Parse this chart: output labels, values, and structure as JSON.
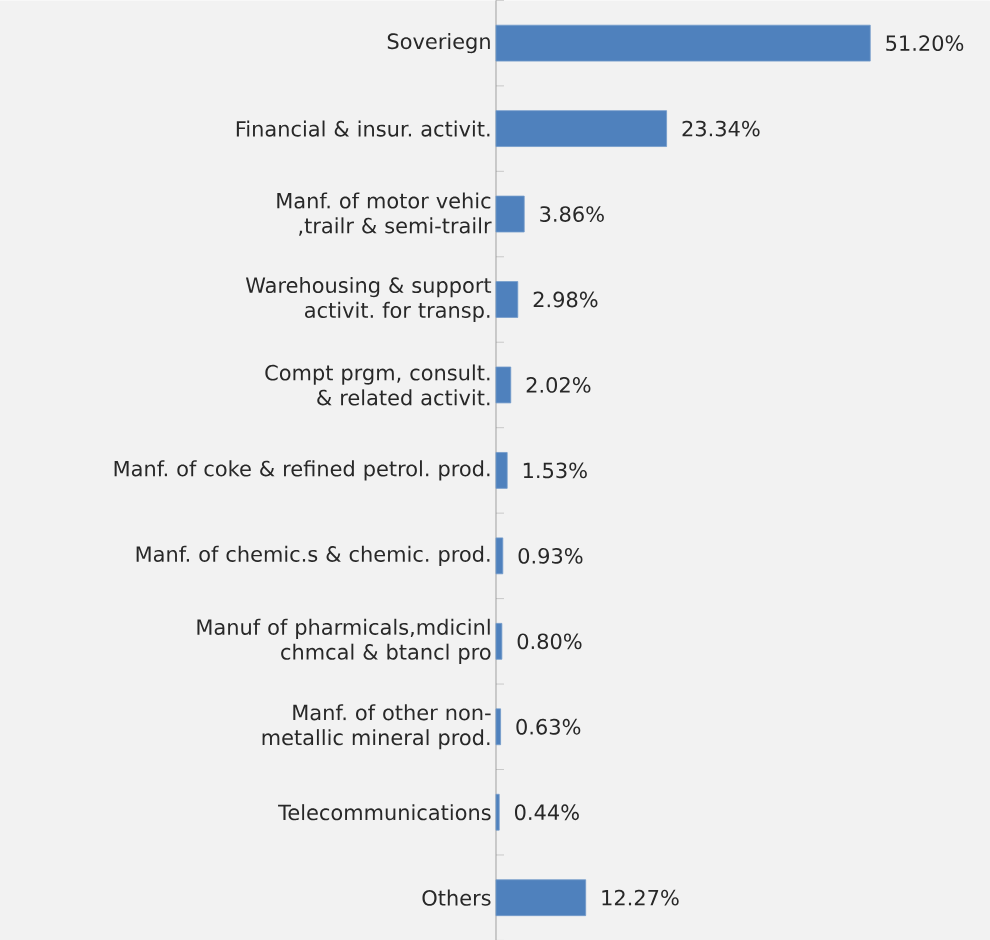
{
  "chart_data": {
    "type": "bar",
    "orientation": "horizontal",
    "categories": [
      "Soveriegn",
      "Financial & insur. activit.",
      "Manf. of motor vehic ,trailr & semi-trailr",
      "Warehousing & support activit. for transp.",
      "Compt prgm, consult. & related activit.",
      "Manf. of coke & refined petrol. prod.",
      "Manf. of chemic.s & chemic. prod.",
      "Manuf of pharmicals,mdicinl chmcal & btancl pro",
      "Manf. of other non-metallic mineral prod.",
      "Telecommunications",
      "Others"
    ],
    "values": [
      51.2,
      23.34,
      3.86,
      2.98,
      2.02,
      1.53,
      0.93,
      0.8,
      0.63,
      0.44,
      12.27
    ],
    "value_labels": [
      "51.20%",
      "23.34%",
      "3.86%",
      "2.98%",
      "2.02%",
      "1.53%",
      "0.93%",
      "0.80%",
      "0.63%",
      "0.44%",
      "12.27%"
    ],
    "color": "#4f81bd"
  }
}
